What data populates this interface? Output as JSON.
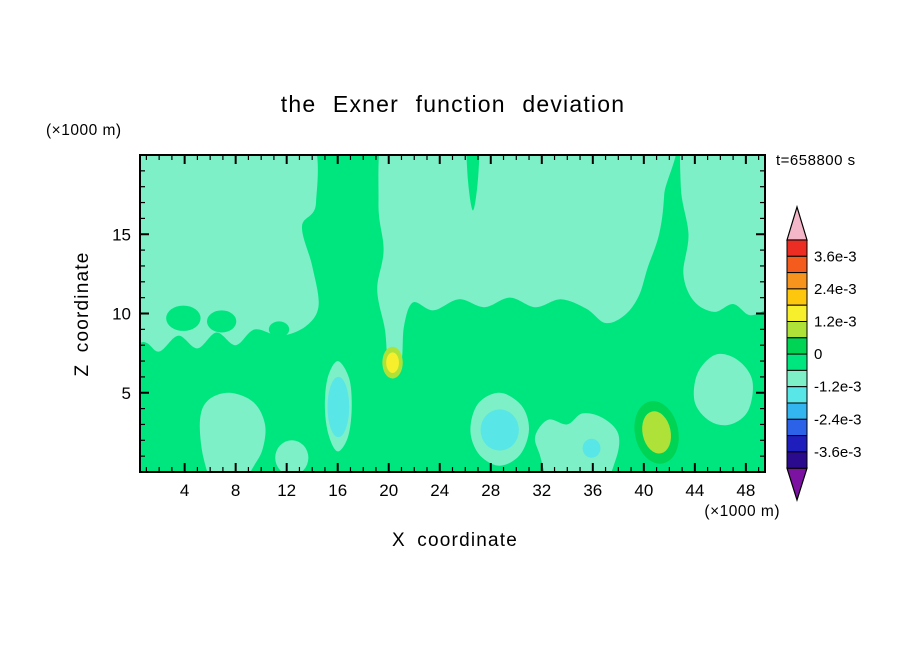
{
  "title": "the Exner function deviation",
  "timestamp": "t=658800 s",
  "axes": {
    "x_label": "X coordinate",
    "y_label": "Z coordinate",
    "x_unit": "(×1000 m)",
    "y_unit": "(×1000 m)",
    "x_ticks": [
      4,
      8,
      12,
      16,
      20,
      24,
      28,
      32,
      36,
      40,
      44,
      48
    ],
    "y_ticks": [
      5,
      10,
      15
    ],
    "x_range": [
      0.5,
      49.5
    ],
    "y_range": [
      0,
      20
    ]
  },
  "colorbar": {
    "labels": [
      "3.6e-3",
      "2.4e-3",
      "1.2e-3",
      "0",
      "-1.2e-3",
      "-2.4e-3",
      "-3.6e-3"
    ],
    "levels": [
      0.0042,
      0.0036,
      0.003,
      0.0024,
      0.0018,
      0.0012,
      0.0006,
      0,
      -0.0006,
      -0.0012,
      -0.0018,
      -0.0024,
      -0.003,
      -0.0036,
      -0.0042
    ],
    "arrow_top_color": "#f3b7c9",
    "arrow_bottom_color": "#7c12a1",
    "colors": [
      "#eb2d23",
      "#f45c1e",
      "#f7941d",
      "#fdc70e",
      "#f8ef2c",
      "#aee239",
      "#00d455",
      "#00e67f",
      "#7df0c8",
      "#58e6e6",
      "#33b6f0",
      "#2b62e8",
      "#1d1ebc",
      "#2a0b8e"
    ]
  },
  "chart_data": {
    "type": "heatmap",
    "subtype": "filled contour plot",
    "title": "the Exner function deviation",
    "xlabel": "X coordinate (×1000 m)",
    "ylabel": "Z coordinate (×1000 m)",
    "time_label": "t=658800 s",
    "xlim": [
      0.5,
      49.5
    ],
    "ylim": [
      0,
      20
    ],
    "contour_interval": 0.0006,
    "labeled_levels": [
      0.0036,
      0.0024,
      0.0012,
      0,
      -0.0012,
      -0.0024,
      -0.0036
    ],
    "base_field": {
      "value_range": "-0.0006..0",
      "color": "#00e67f"
    },
    "regions": [
      {
        "name": "upper-left-band",
        "value_range": "-0.0012..-0.0006",
        "color": "#7df0c8",
        "shape": "blob",
        "points": [
          [
            -1,
            22
          ],
          [
            6,
            21.5
          ],
          [
            13.5,
            21.5
          ],
          [
            14.3,
            17
          ],
          [
            13.2,
            15.5
          ],
          [
            14.0,
            13
          ],
          [
            14.5,
            10.5
          ],
          [
            13.5,
            9.2
          ],
          [
            11.5,
            8.6
          ],
          [
            9.5,
            9.0
          ],
          [
            8.0,
            8.0
          ],
          [
            6.5,
            8.8
          ],
          [
            5.0,
            7.8
          ],
          [
            3.5,
            8.6
          ],
          [
            2.0,
            7.6
          ],
          [
            0.8,
            8.2
          ],
          [
            -1.5,
            8.0
          ],
          [
            -2,
            15
          ]
        ]
      },
      {
        "name": "upper-center-band",
        "value_range": "-0.0012..-0.0006",
        "color": "#7df0c8",
        "shape": "blob",
        "points": [
          [
            19.8,
            22
          ],
          [
            19.2,
            17
          ],
          [
            19.6,
            14
          ],
          [
            19.1,
            11.5
          ],
          [
            19.7,
            9.0
          ],
          [
            19.9,
            7.2
          ],
          [
            20.3,
            5.9
          ],
          [
            21.0,
            7.0
          ],
          [
            21.2,
            9.2
          ],
          [
            21.9,
            10.7
          ],
          [
            23.5,
            10.2
          ],
          [
            25.5,
            10.9
          ],
          [
            27.5,
            10.4
          ],
          [
            29.5,
            11.0
          ],
          [
            31.5,
            10.4
          ],
          [
            33.5,
            10.9
          ],
          [
            35.5,
            10.3
          ],
          [
            37.0,
            9.4
          ],
          [
            38.5,
            9.9
          ],
          [
            39.6,
            11.1
          ],
          [
            40.3,
            12.9
          ],
          [
            41.2,
            15.0
          ],
          [
            41.6,
            17.5
          ],
          [
            41.8,
            22
          ],
          [
            30,
            23
          ],
          [
            24,
            23
          ]
        ]
      },
      {
        "name": "upper-right-band",
        "value_range": "-0.0012..-0.0006",
        "color": "#7df0c8",
        "shape": "blob",
        "points": [
          [
            43.2,
            22
          ],
          [
            42.9,
            18
          ],
          [
            43.5,
            15
          ],
          [
            43.1,
            12.5
          ],
          [
            43.9,
            10.8
          ],
          [
            45.5,
            10.1
          ],
          [
            47.0,
            10.6
          ],
          [
            48.3,
            9.9
          ],
          [
            49.7,
            10.3
          ],
          [
            51,
            11
          ],
          [
            51,
            22
          ],
          [
            46,
            23
          ]
        ]
      },
      {
        "name": "lower-left-blob",
        "value_range": "-0.0012..-0.0006",
        "color": "#7df0c8",
        "shape": "blob",
        "points": [
          [
            5.2,
            3.2
          ],
          [
            5.8,
            4.5
          ],
          [
            7.5,
            5.0
          ],
          [
            9.4,
            4.4
          ],
          [
            10.3,
            3.0
          ],
          [
            10.1,
            1.4
          ],
          [
            9.3,
            0.2
          ],
          [
            8.5,
            -1
          ],
          [
            6.5,
            -1
          ],
          [
            5.5,
            0.8
          ]
        ]
      },
      {
        "name": "lower-left-small-blob",
        "value_range": "-0.0012..-0.0006",
        "color": "#7df0c8",
        "shape": "ellipse",
        "cx": 12.4,
        "cy": 0.9,
        "rx": 1.3,
        "ry": 1.1,
        "rot": 0
      },
      {
        "name": "lower-center-band",
        "value_range": "-0.0012..-0.0006",
        "color": "#7df0c8",
        "shape": "blob",
        "points": [
          [
            31.8,
            1.2
          ],
          [
            31.5,
            2.3
          ],
          [
            32.5,
            3.3
          ],
          [
            34.0,
            3.0
          ],
          [
            35.2,
            3.7
          ],
          [
            36.8,
            3.4
          ],
          [
            38.0,
            2.4
          ],
          [
            37.8,
            0.8
          ],
          [
            36.5,
            -1
          ],
          [
            33.0,
            -1
          ]
        ]
      },
      {
        "name": "cool-halo-left",
        "value_range": "-0.0012..-0.0006",
        "color": "#7df0c8",
        "shape": "blob",
        "points": [
          [
            15.0,
            4.0
          ],
          [
            15.2,
            5.9
          ],
          [
            16.0,
            7.0
          ],
          [
            16.9,
            5.9
          ],
          [
            17.1,
            4.0
          ],
          [
            16.8,
            2.2
          ],
          [
            16.0,
            1.3
          ],
          [
            15.3,
            2.3
          ]
        ]
      },
      {
        "name": "cool-halo-center",
        "value_range": "-0.0012..-0.0006",
        "color": "#7df0c8",
        "shape": "blob",
        "points": [
          [
            26.4,
            2.6
          ],
          [
            27.0,
            4.3
          ],
          [
            28.7,
            5.0
          ],
          [
            30.4,
            4.2
          ],
          [
            31.0,
            2.7
          ],
          [
            30.3,
            1.1
          ],
          [
            28.7,
            0.4
          ],
          [
            27.1,
            1.1
          ]
        ]
      },
      {
        "name": "lower-right-blob",
        "value_range": "-0.0012..-0.0006",
        "color": "#7df0c8",
        "shape": "blob",
        "points": [
          [
            44.2,
            6.2
          ],
          [
            45.6,
            7.4
          ],
          [
            47.3,
            7.1
          ],
          [
            48.5,
            5.8
          ],
          [
            48.2,
            3.9
          ],
          [
            46.8,
            3.0
          ],
          [
            45.2,
            3.2
          ],
          [
            44.0,
            4.4
          ]
        ]
      },
      {
        "name": "hole-upper-left-1",
        "value_range": "-0.0006..0",
        "color": "#00e67f",
        "shape": "ellipse",
        "cx": 3.9,
        "cy": 9.7,
        "rx": 1.35,
        "ry": 0.8,
        "rot": 0
      },
      {
        "name": "hole-upper-left-2",
        "value_range": "-0.0006..0",
        "color": "#00e67f",
        "shape": "ellipse",
        "cx": 6.9,
        "cy": 9.5,
        "rx": 1.15,
        "ry": 0.7,
        "rot": 0
      },
      {
        "name": "hole-upper-left-3",
        "value_range": "-0.0006..0",
        "color": "#00e67f",
        "shape": "ellipse",
        "cx": 11.4,
        "cy": 9.0,
        "rx": 0.8,
        "ry": 0.5,
        "rot": 0
      },
      {
        "name": "notch-top-center",
        "value_range": "-0.0006..0",
        "color": "#00e67f",
        "shape": "blob",
        "points": [
          [
            26.1,
            21.5
          ],
          [
            26.2,
            18.5
          ],
          [
            26.6,
            16.5
          ],
          [
            27.0,
            18.5
          ],
          [
            27.1,
            21.5
          ],
          [
            26.6,
            22.2
          ]
        ]
      },
      {
        "name": "cool-spot-left",
        "value_range": "-0.0018..-0.0012",
        "color": "#58e6e6",
        "shape": "ellipse",
        "cx": 16.05,
        "cy": 4.1,
        "rx": 0.85,
        "ry": 1.9,
        "rot": 0
      },
      {
        "name": "cool-spot-center",
        "value_range": "-0.0018..-0.0012",
        "color": "#58e6e6",
        "shape": "ellipse",
        "cx": 28.7,
        "cy": 2.65,
        "rx": 1.5,
        "ry": 1.3,
        "rot": 0
      },
      {
        "name": "cool-spot-small",
        "value_range": "-0.0018..-0.0012",
        "color": "#58e6e6",
        "shape": "ellipse",
        "cx": 35.9,
        "cy": 1.5,
        "rx": 0.7,
        "ry": 0.6,
        "rot": 0
      },
      {
        "name": "warm-halo-right",
        "value_range": "0..0.0006",
        "color": "#00d455",
        "shape": "ellipse",
        "cx": 41.0,
        "cy": 2.5,
        "rx": 1.7,
        "ry": 2.0,
        "rot": -12
      },
      {
        "name": "warm-spot-right",
        "value_range": "0.0006..0.0012",
        "color": "#aee239",
        "shape": "ellipse",
        "cx": 41.0,
        "cy": 2.5,
        "rx": 1.1,
        "ry": 1.35,
        "rot": -12
      },
      {
        "name": "warm-halo-center",
        "value_range": "0.0006..0.0012",
        "color": "#aee239",
        "shape": "ellipse",
        "cx": 20.3,
        "cy": 6.9,
        "rx": 0.8,
        "ry": 1.0,
        "rot": 0
      },
      {
        "name": "warm-spot-center",
        "value_range": "0.0012..0.0018",
        "color": "#f8ef2c",
        "shape": "ellipse",
        "cx": 20.3,
        "cy": 6.9,
        "rx": 0.5,
        "ry": 0.65,
        "rot": 0
      }
    ]
  }
}
